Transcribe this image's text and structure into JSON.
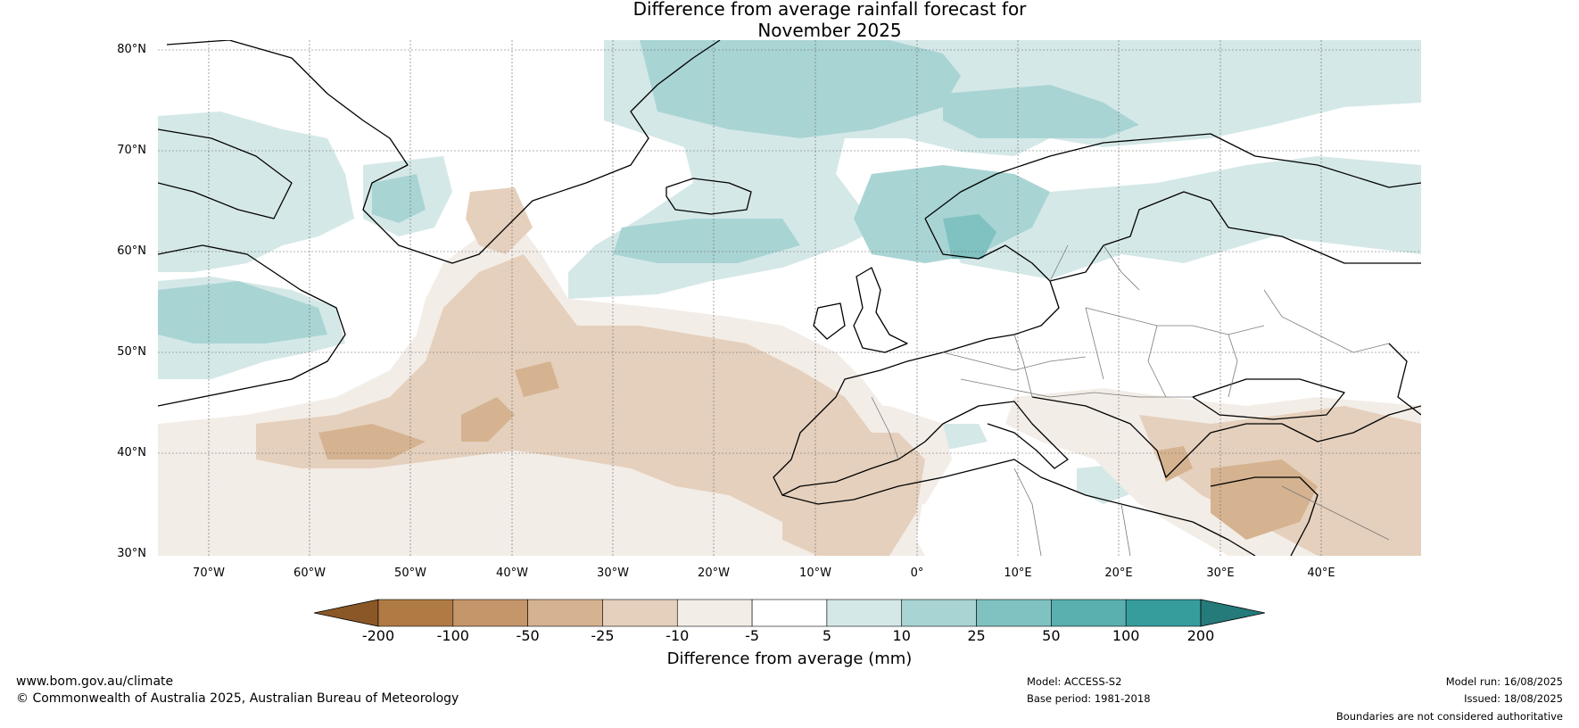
{
  "title_line1": "Difference from average rainfall forecast for",
  "title_line2": "November 2025",
  "lat_labels": [
    "80°N",
    "70°N",
    "60°N",
    "50°N",
    "40°N",
    "30°N"
  ],
  "lon_labels": [
    "70°W",
    "60°W",
    "50°W",
    "40°W",
    "30°W",
    "20°W",
    "10°W",
    "0°",
    "10°E",
    "20°E",
    "30°E",
    "40°E"
  ],
  "colorbar": {
    "ticks": [
      "-200",
      "-100",
      "-50",
      "-25",
      "-10",
      "-5",
      "5",
      "10",
      "25",
      "50",
      "100",
      "200"
    ],
    "colors": [
      "#8b5727",
      "#b07a45",
      "#c4966a",
      "#d5b390",
      "#e5d0bd",
      "#f3ede7",
      "#ffffff",
      "#d5e8e8",
      "#a9d4d4",
      "#80c1c1",
      "#5aafaf",
      "#379c9c",
      "#257a7a"
    ],
    "label": "Difference from average (mm)"
  },
  "legend_colors": {
    "dry_mild": "#f3ede7",
    "dry_light": "#e5d0bd",
    "dry_mod": "#d5b390",
    "wet_light": "#d5e8e8",
    "wet_mod": "#a9d4d4",
    "wet_strong": "#80c1c1"
  },
  "footer": {
    "website": "www.bom.gov.au/climate",
    "copyright": "© Commonwealth of Australia 2025, Australian Bureau of Meteorology",
    "model": "Model: ACCESS-S2",
    "base_period": "Base period: 1981-2018",
    "model_run": "Model run: 16/08/2025",
    "issued": "Issued: 18/08/2025",
    "disclaimer": "Boundaries are not considered authoritative"
  }
}
